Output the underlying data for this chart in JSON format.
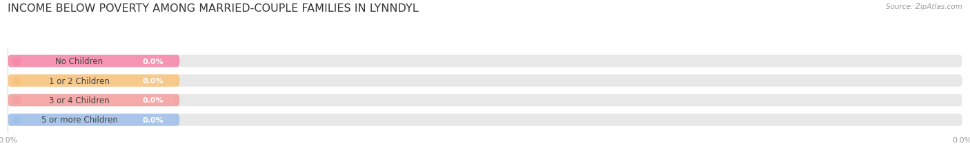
{
  "title": "INCOME BELOW POVERTY AMONG MARRIED-COUPLE FAMILIES IN LYNNDYL",
  "source": "Source: ZipAtlas.com",
  "categories": [
    "No Children",
    "1 or 2 Children",
    "3 or 4 Children",
    "5 or more Children"
  ],
  "values": [
    0.0,
    0.0,
    0.0,
    0.0
  ],
  "bar_colors": [
    "#f48aaa",
    "#f7c47e",
    "#f4a0a0",
    "#a0c0e8"
  ],
  "bar_bg_color": "#e8e8e8",
  "dot_colors": [
    "#f48aaa",
    "#f7c47e",
    "#f4a0a0",
    "#a0c0e8"
  ],
  "label_color": "#444444",
  "value_label_color": "#ffffff",
  "title_color": "#333333",
  "source_color": "#999999",
  "background_color": "#ffffff",
  "bar_height": 0.62,
  "figsize": [
    14.06,
    2.32
  ],
  "dpi": 100,
  "title_fontsize": 11.5,
  "label_fontsize": 8.5,
  "value_fontsize": 8,
  "source_fontsize": 7.5,
  "tick_fontsize": 8
}
